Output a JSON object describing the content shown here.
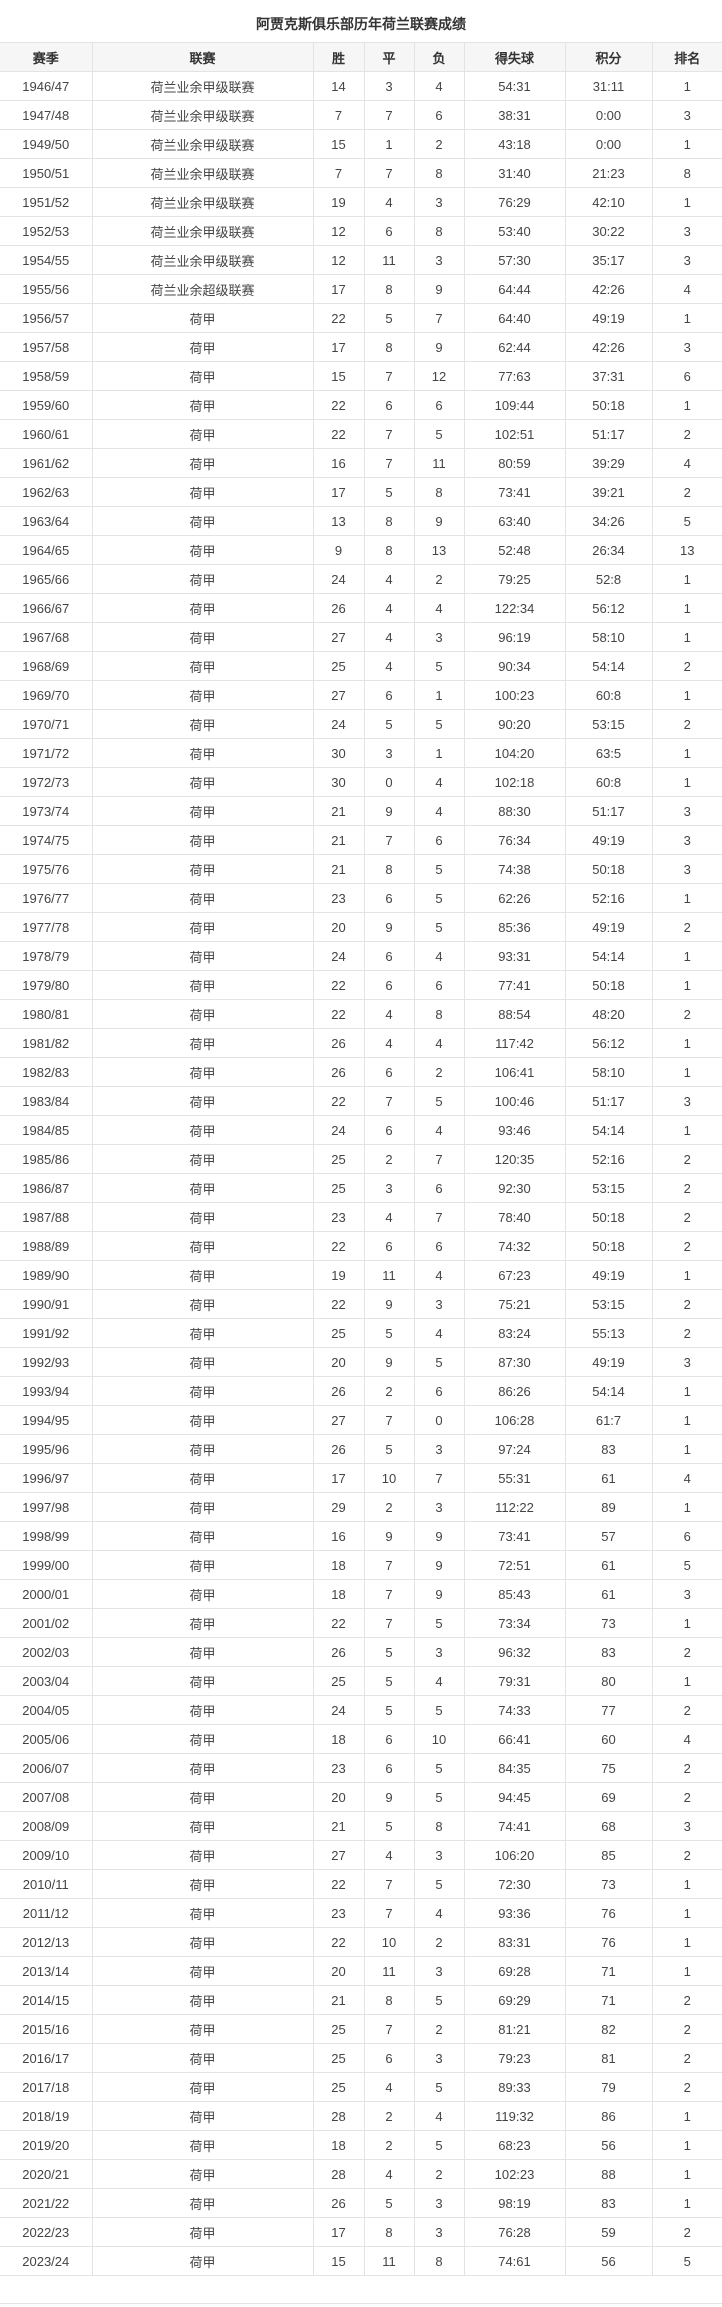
{
  "title": "阿贾克斯俱乐部历年荷兰联赛成绩",
  "columns": [
    "赛季",
    "联赛",
    "胜",
    "平",
    "负",
    "得失球",
    "积分",
    "排名"
  ],
  "rows": [
    [
      "1946/47",
      "荷兰业余甲级联赛",
      "14",
      "3",
      "4",
      "54:31",
      "31:11",
      "1"
    ],
    [
      "1947/48",
      "荷兰业余甲级联赛",
      "7",
      "7",
      "6",
      "38:31",
      "0:00",
      "3"
    ],
    [
      "1949/50",
      "荷兰业余甲级联赛",
      "15",
      "1",
      "2",
      "43:18",
      "0:00",
      "1"
    ],
    [
      "1950/51",
      "荷兰业余甲级联赛",
      "7",
      "7",
      "8",
      "31:40",
      "21:23",
      "8"
    ],
    [
      "1951/52",
      "荷兰业余甲级联赛",
      "19",
      "4",
      "3",
      "76:29",
      "42:10",
      "1"
    ],
    [
      "1952/53",
      "荷兰业余甲级联赛",
      "12",
      "6",
      "8",
      "53:40",
      "30:22",
      "3"
    ],
    [
      "1954/55",
      "荷兰业余甲级联赛",
      "12",
      "11",
      "3",
      "57:30",
      "35:17",
      "3"
    ],
    [
      "1955/56",
      "荷兰业余超级联赛",
      "17",
      "8",
      "9",
      "64:44",
      "42:26",
      "4"
    ],
    [
      "1956/57",
      "荷甲",
      "22",
      "5",
      "7",
      "64:40",
      "49:19",
      "1"
    ],
    [
      "1957/58",
      "荷甲",
      "17",
      "8",
      "9",
      "62:44",
      "42:26",
      "3"
    ],
    [
      "1958/59",
      "荷甲",
      "15",
      "7",
      "12",
      "77:63",
      "37:31",
      "6"
    ],
    [
      "1959/60",
      "荷甲",
      "22",
      "6",
      "6",
      "109:44",
      "50:18",
      "1"
    ],
    [
      "1960/61",
      "荷甲",
      "22",
      "7",
      "5",
      "102:51",
      "51:17",
      "2"
    ],
    [
      "1961/62",
      "荷甲",
      "16",
      "7",
      "11",
      "80:59",
      "39:29",
      "4"
    ],
    [
      "1962/63",
      "荷甲",
      "17",
      "5",
      "8",
      "73:41",
      "39:21",
      "2"
    ],
    [
      "1963/64",
      "荷甲",
      "13",
      "8",
      "9",
      "63:40",
      "34:26",
      "5"
    ],
    [
      "1964/65",
      "荷甲",
      "9",
      "8",
      "13",
      "52:48",
      "26:34",
      "13"
    ],
    [
      "1965/66",
      "荷甲",
      "24",
      "4",
      "2",
      "79:25",
      "52:8",
      "1"
    ],
    [
      "1966/67",
      "荷甲",
      "26",
      "4",
      "4",
      "122:34",
      "56:12",
      "1"
    ],
    [
      "1967/68",
      "荷甲",
      "27",
      "4",
      "3",
      "96:19",
      "58:10",
      "1"
    ],
    [
      "1968/69",
      "荷甲",
      "25",
      "4",
      "5",
      "90:34",
      "54:14",
      "2"
    ],
    [
      "1969/70",
      "荷甲",
      "27",
      "6",
      "1",
      "100:23",
      "60:8",
      "1"
    ],
    [
      "1970/71",
      "荷甲",
      "24",
      "5",
      "5",
      "90:20",
      "53:15",
      "2"
    ],
    [
      "1971/72",
      "荷甲",
      "30",
      "3",
      "1",
      "104:20",
      "63:5",
      "1"
    ],
    [
      "1972/73",
      "荷甲",
      "30",
      "0",
      "4",
      "102:18",
      "60:8",
      "1"
    ],
    [
      "1973/74",
      "荷甲",
      "21",
      "9",
      "4",
      "88:30",
      "51:17",
      "3"
    ],
    [
      "1974/75",
      "荷甲",
      "21",
      "7",
      "6",
      "76:34",
      "49:19",
      "3"
    ],
    [
      "1975/76",
      "荷甲",
      "21",
      "8",
      "5",
      "74:38",
      "50:18",
      "3"
    ],
    [
      "1976/77",
      "荷甲",
      "23",
      "6",
      "5",
      "62:26",
      "52:16",
      "1"
    ],
    [
      "1977/78",
      "荷甲",
      "20",
      "9",
      "5",
      "85:36",
      "49:19",
      "2"
    ],
    [
      "1978/79",
      "荷甲",
      "24",
      "6",
      "4",
      "93:31",
      "54:14",
      "1"
    ],
    [
      "1979/80",
      "荷甲",
      "22",
      "6",
      "6",
      "77:41",
      "50:18",
      "1"
    ],
    [
      "1980/81",
      "荷甲",
      "22",
      "4",
      "8",
      "88:54",
      "48:20",
      "2"
    ],
    [
      "1981/82",
      "荷甲",
      "26",
      "4",
      "4",
      "117:42",
      "56:12",
      "1"
    ],
    [
      "1982/83",
      "荷甲",
      "26",
      "6",
      "2",
      "106:41",
      "58:10",
      "1"
    ],
    [
      "1983/84",
      "荷甲",
      "22",
      "7",
      "5",
      "100:46",
      "51:17",
      "3"
    ],
    [
      "1984/85",
      "荷甲",
      "24",
      "6",
      "4",
      "93:46",
      "54:14",
      "1"
    ],
    [
      "1985/86",
      "荷甲",
      "25",
      "2",
      "7",
      "120:35",
      "52:16",
      "2"
    ],
    [
      "1986/87",
      "荷甲",
      "25",
      "3",
      "6",
      "92:30",
      "53:15",
      "2"
    ],
    [
      "1987/88",
      "荷甲",
      "23",
      "4",
      "7",
      "78:40",
      "50:18",
      "2"
    ],
    [
      "1988/89",
      "荷甲",
      "22",
      "6",
      "6",
      "74:32",
      "50:18",
      "2"
    ],
    [
      "1989/90",
      "荷甲",
      "19",
      "11",
      "4",
      "67:23",
      "49:19",
      "1"
    ],
    [
      "1990/91",
      "荷甲",
      "22",
      "9",
      "3",
      "75:21",
      "53:15",
      "2"
    ],
    [
      "1991/92",
      "荷甲",
      "25",
      "5",
      "4",
      "83:24",
      "55:13",
      "2"
    ],
    [
      "1992/93",
      "荷甲",
      "20",
      "9",
      "5",
      "87:30",
      "49:19",
      "3"
    ],
    [
      "1993/94",
      "荷甲",
      "26",
      "2",
      "6",
      "86:26",
      "54:14",
      "1"
    ],
    [
      "1994/95",
      "荷甲",
      "27",
      "7",
      "0",
      "106:28",
      "61:7",
      "1"
    ],
    [
      "1995/96",
      "荷甲",
      "26",
      "5",
      "3",
      "97:24",
      "83",
      "1"
    ],
    [
      "1996/97",
      "荷甲",
      "17",
      "10",
      "7",
      "55:31",
      "61",
      "4"
    ],
    [
      "1997/98",
      "荷甲",
      "29",
      "2",
      "3",
      "112:22",
      "89",
      "1"
    ],
    [
      "1998/99",
      "荷甲",
      "16",
      "9",
      "9",
      "73:41",
      "57",
      "6"
    ],
    [
      "1999/00",
      "荷甲",
      "18",
      "7",
      "9",
      "72:51",
      "61",
      "5"
    ],
    [
      "2000/01",
      "荷甲",
      "18",
      "7",
      "9",
      "85:43",
      "61",
      "3"
    ],
    [
      "2001/02",
      "荷甲",
      "22",
      "7",
      "5",
      "73:34",
      "73",
      "1"
    ],
    [
      "2002/03",
      "荷甲",
      "26",
      "5",
      "3",
      "96:32",
      "83",
      "2"
    ],
    [
      "2003/04",
      "荷甲",
      "25",
      "5",
      "4",
      "79:31",
      "80",
      "1"
    ],
    [
      "2004/05",
      "荷甲",
      "24",
      "5",
      "5",
      "74:33",
      "77",
      "2"
    ],
    [
      "2005/06",
      "荷甲",
      "18",
      "6",
      "10",
      "66:41",
      "60",
      "4"
    ],
    [
      "2006/07",
      "荷甲",
      "23",
      "6",
      "5",
      "84:35",
      "75",
      "2"
    ],
    [
      "2007/08",
      "荷甲",
      "20",
      "9",
      "5",
      "94:45",
      "69",
      "2"
    ],
    [
      "2008/09",
      "荷甲",
      "21",
      "5",
      "8",
      "74:41",
      "68",
      "3"
    ],
    [
      "2009/10",
      "荷甲",
      "27",
      "4",
      "3",
      "106:20",
      "85",
      "2"
    ],
    [
      "2010/11",
      "荷甲",
      "22",
      "7",
      "5",
      "72:30",
      "73",
      "1"
    ],
    [
      "2011/12",
      "荷甲",
      "23",
      "7",
      "4",
      "93:36",
      "76",
      "1"
    ],
    [
      "2012/13",
      "荷甲",
      "22",
      "10",
      "2",
      "83:31",
      "76",
      "1"
    ],
    [
      "2013/14",
      "荷甲",
      "20",
      "11",
      "3",
      "69:28",
      "71",
      "1"
    ],
    [
      "2014/15",
      "荷甲",
      "21",
      "8",
      "5",
      "69:29",
      "71",
      "2"
    ],
    [
      "2015/16",
      "荷甲",
      "25",
      "7",
      "2",
      "81:21",
      "82",
      "2"
    ],
    [
      "2016/17",
      "荷甲",
      "25",
      "6",
      "3",
      "79:23",
      "81",
      "2"
    ],
    [
      "2017/18",
      "荷甲",
      "25",
      "4",
      "5",
      "89:33",
      "79",
      "2"
    ],
    [
      "2018/19",
      "荷甲",
      "28",
      "2",
      "4",
      "119:32",
      "86",
      "1"
    ],
    [
      "2019/20",
      "荷甲",
      "18",
      "2",
      "5",
      "68:23",
      "56",
      "1"
    ],
    [
      "2020/21",
      "荷甲",
      "28",
      "4",
      "2",
      "102:23",
      "88",
      "1"
    ],
    [
      "2021/22",
      "荷甲",
      "26",
      "5",
      "3",
      "98:19",
      "83",
      "1"
    ],
    [
      "2022/23",
      "荷甲",
      "17",
      "8",
      "3",
      "76:28",
      "59",
      "2"
    ],
    [
      "2023/24",
      "荷甲",
      "15",
      "11",
      "8",
      "74:61",
      "56",
      "5"
    ]
  ]
}
